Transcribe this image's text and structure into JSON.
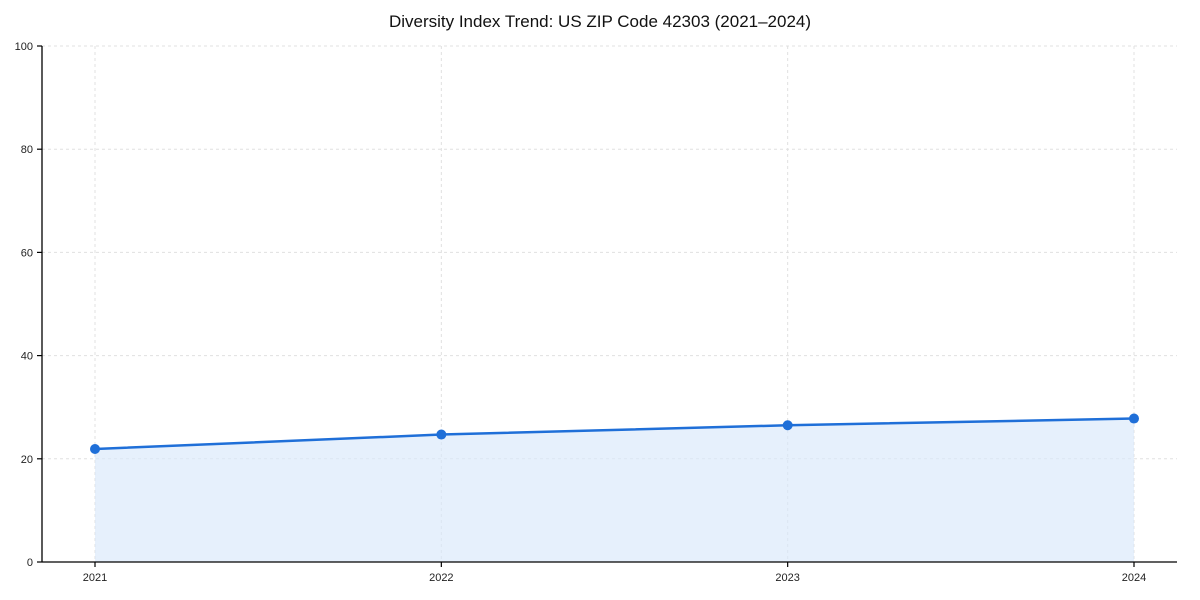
{
  "chart": {
    "title": "Diversity Index Trend: US ZIP Code 42303 (2021–2024)"
  },
  "chart_data": {
    "type": "line",
    "categories": [
      "2021",
      "2022",
      "2023",
      "2024"
    ],
    "series": [
      {
        "name": "Diversity Index",
        "values": [
          21.9,
          24.7,
          26.5,
          27.8
        ]
      }
    ],
    "title": "Diversity Index Trend: US ZIP Code 42303 (2021–2024)",
    "xlabel": "",
    "ylabel": "",
    "ylim": [
      0,
      100
    ],
    "yticks": [
      0,
      20,
      40,
      60,
      80,
      100
    ],
    "grid": "dashed",
    "legend": "none",
    "area": true,
    "marker": "circle",
    "colors": {
      "line": "#1f6fd8",
      "fill": "#d9e8fb",
      "gridline": "#e0e0e0",
      "spine": "#000000",
      "tick_label": "#222222"
    }
  }
}
